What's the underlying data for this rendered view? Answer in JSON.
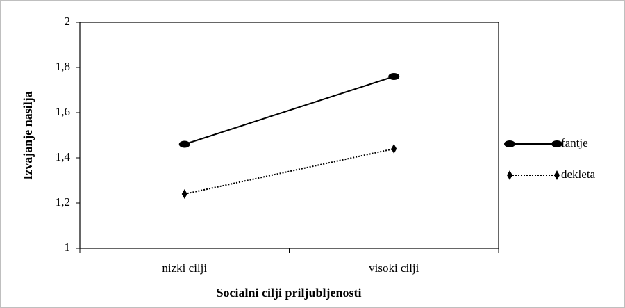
{
  "chart_data": {
    "type": "line",
    "x_label": "Socialni cilji priljubljenosti",
    "y_label": "Izvajanje nasilja",
    "categories": [
      "nizki cilji",
      "visoki cilji"
    ],
    "series": [
      {
        "name": "fantje",
        "color": "#000000",
        "line_style": "solid",
        "marker": "circle",
        "values": [
          1.46,
          1.76
        ]
      },
      {
        "name": "dekleta",
        "color": "#000000",
        "line_style": "dotted",
        "marker": "diamond",
        "values": [
          1.24,
          1.44
        ]
      }
    ],
    "ylim": [
      1,
      2
    ],
    "yticks": [
      1,
      {
        "value": 1.2,
        "label": "1,2"
      },
      {
        "value": 1.4,
        "label": "1,4"
      },
      {
        "value": 1.6,
        "label": "1,6"
      },
      {
        "value": 1.8,
        "label": "1,8"
      },
      2
    ],
    "grid": false,
    "legend": "right"
  }
}
